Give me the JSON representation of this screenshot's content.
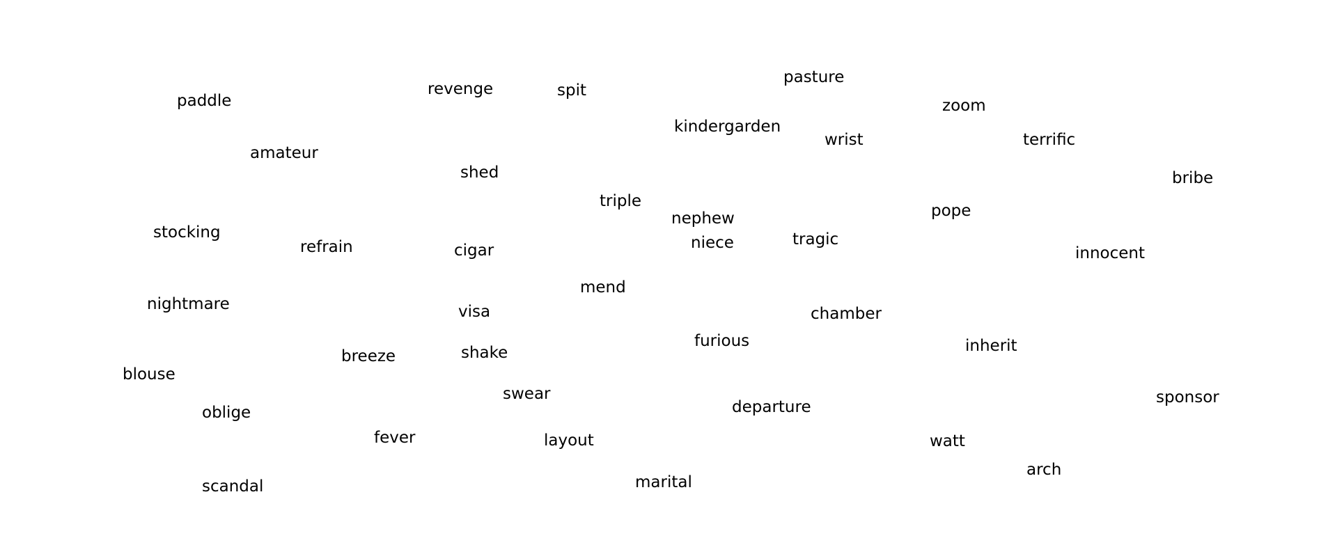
{
  "words": [
    "paddle",
    "revenge",
    "spit",
    "pasture",
    "zoom",
    "kindergarden",
    "wrist",
    "terrific",
    "amateur",
    "shed",
    "bribe",
    "triple",
    "nephew",
    "pope",
    "stocking",
    "refrain",
    "cigar",
    "niece",
    "tragic",
    "innocent",
    "mend",
    "nightmare",
    "visa",
    "chamber",
    "furious",
    "inherit",
    "breeze",
    "shake",
    "blouse",
    "swear",
    "departure",
    "sponsor",
    "oblige",
    "fever",
    "layout",
    "watt",
    "arch",
    "marital",
    "scandal"
  ]
}
